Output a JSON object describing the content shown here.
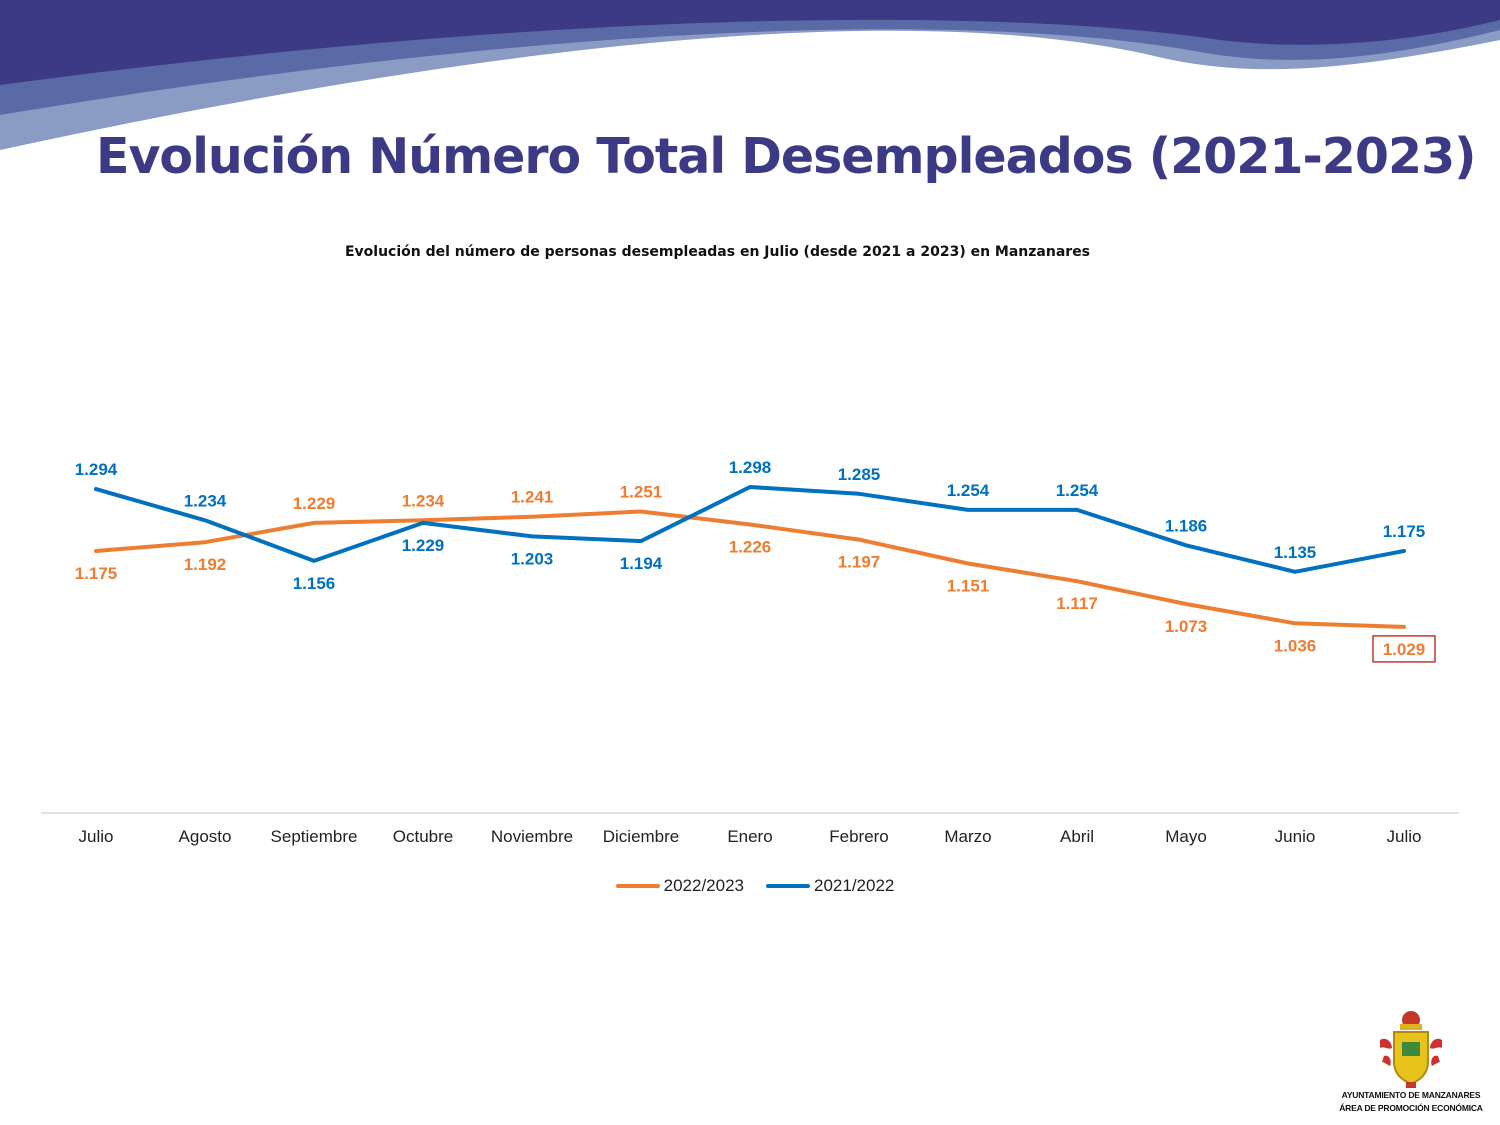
{
  "header": {
    "title": "Evolución Número Total Desempleados (2021-2023)"
  },
  "chart_data": {
    "type": "line",
    "title": "Evolución del número de personas desempleadas en Julio (desde 2021 a 2023) en Manzanares",
    "categories": [
      "Julio",
      "Agosto",
      "Septiembre",
      "Octubre",
      "Noviembre",
      "Diciembre",
      "Enero",
      "Febrero",
      "Marzo",
      "Abril",
      "Mayo",
      "Junio",
      "Julio"
    ],
    "series": [
      {
        "name": "2022/2023",
        "color": "#ed7d31",
        "values": [
          1175,
          1192,
          1229,
          1234,
          1241,
          1251,
          1226,
          1197,
          1151,
          1117,
          1073,
          1036,
          1029
        ],
        "labels": [
          "1.175",
          "1.192",
          "1.229",
          "1.234",
          "1.241",
          "1.251",
          "1.226",
          "1.197",
          "1.151",
          "1.117",
          "1.073",
          "1.036",
          "1.029"
        ]
      },
      {
        "name": "2021/2022",
        "color": "#0070c0",
        "values": [
          1294,
          1234,
          1156,
          1229,
          1203,
          1194,
          1298,
          1285,
          1254,
          1254,
          1186,
          1135,
          1175
        ],
        "labels": [
          "1.294",
          "1.234",
          "1.156",
          "1.229",
          "1.203",
          "1.194",
          "1.298",
          "1.285",
          "1.254",
          "1.254",
          "1.186",
          "1.135",
          "1.175"
        ]
      }
    ],
    "highlighted_label": "1.029",
    "highlight_color": "#c0392b",
    "legend_position": "bottom",
    "grid": false
  },
  "logo": {
    "line1": "AYUNTAMIENTO DE MANZANARES",
    "line2": "ÁREA DE PROMOCIÓN ECONÓMICA"
  }
}
